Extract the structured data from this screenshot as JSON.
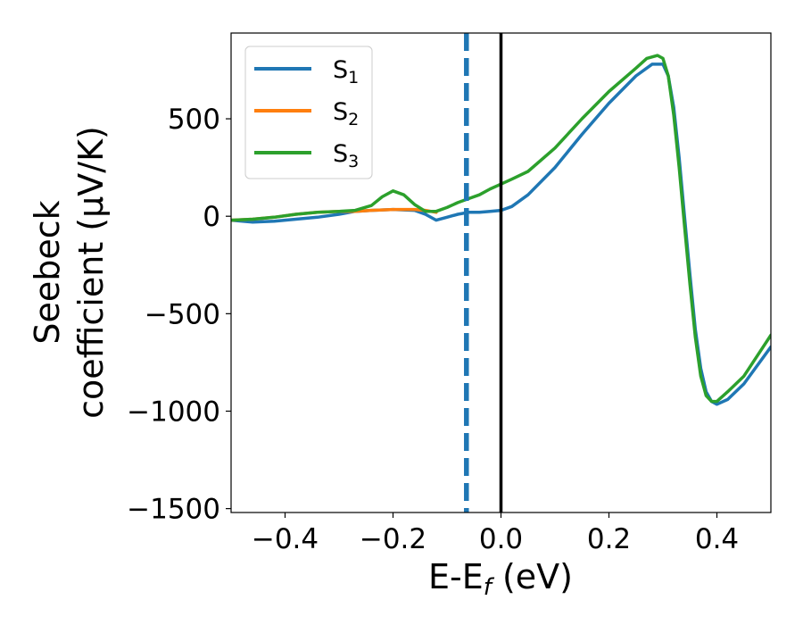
{
  "chart_data": {
    "type": "line",
    "xlabel": "E-E",
    "xlabel_sub": "f",
    "xlabel_unit": " (eV)",
    "ylabel_line1": "Seebeck",
    "ylabel_line2": "coefficient  (μV/K)",
    "xlim": [
      -0.5,
      0.5
    ],
    "ylim": [
      -1520,
      940
    ],
    "xticks": [
      -0.4,
      -0.2,
      0.0,
      0.2,
      0.4
    ],
    "xtick_labels": [
      "−0.4",
      "−0.2",
      "0.0",
      "0.2",
      "0.4"
    ],
    "yticks": [
      -1500,
      -1000,
      -500,
      0,
      500
    ],
    "ytick_labels": [
      "−1500",
      "−1000",
      "−500",
      "0",
      "500"
    ],
    "grid": false,
    "legend_position": "top-left",
    "vlines": [
      {
        "x": -0.064,
        "style": "dashed",
        "color": "#1f77b4"
      },
      {
        "x": 0.0,
        "style": "solid",
        "color": "#000000"
      }
    ],
    "series": [
      {
        "name": "S",
        "sub": "1",
        "color": "#1f77b4",
        "x": [
          -0.5,
          -0.46,
          -0.42,
          -0.38,
          -0.34,
          -0.3,
          -0.27,
          -0.24,
          -0.2,
          -0.16,
          -0.14,
          -0.12,
          -0.1,
          -0.08,
          -0.06,
          -0.04,
          -0.02,
          0.0,
          0.02,
          0.05,
          0.1,
          0.15,
          0.2,
          0.25,
          0.28,
          0.3,
          0.31,
          0.32,
          0.33,
          0.34,
          0.35,
          0.36,
          0.37,
          0.38,
          0.39,
          0.4,
          0.42,
          0.45,
          0.5
        ],
        "y": [
          -20,
          -30,
          -25,
          -15,
          -5,
          10,
          25,
          30,
          35,
          30,
          10,
          -20,
          -5,
          10,
          20,
          20,
          25,
          30,
          50,
          110,
          250,
          420,
          580,
          720,
          780,
          780,
          720,
          560,
          300,
          0,
          -300,
          -580,
          -780,
          -900,
          -950,
          -965,
          -940,
          -860,
          -670
        ]
      },
      {
        "name": "S",
        "sub": "2",
        "color": "#ff7f0e",
        "x": [
          -0.5,
          -0.46,
          -0.42,
          -0.38,
          -0.34,
          -0.3,
          -0.27,
          -0.24,
          -0.2,
          -0.16,
          -0.14,
          -0.12
        ],
        "y": [
          -20,
          -15,
          -5,
          10,
          20,
          25,
          25,
          30,
          35,
          35,
          30,
          20
        ]
      },
      {
        "name": "S",
        "sub": "3",
        "color": "#2ca02c",
        "x": [
          -0.5,
          -0.46,
          -0.42,
          -0.38,
          -0.34,
          -0.3,
          -0.27,
          -0.24,
          -0.22,
          -0.2,
          -0.18,
          -0.16,
          -0.14,
          -0.12,
          -0.1,
          -0.08,
          -0.06,
          -0.04,
          -0.02,
          0.0,
          0.02,
          0.05,
          0.1,
          0.15,
          0.2,
          0.25,
          0.27,
          0.29,
          0.3,
          0.31,
          0.32,
          0.33,
          0.34,
          0.35,
          0.36,
          0.37,
          0.38,
          0.39,
          0.4,
          0.42,
          0.45,
          0.5
        ],
        "y": [
          -20,
          -15,
          -5,
          10,
          20,
          25,
          30,
          55,
          100,
          130,
          110,
          60,
          25,
          25,
          45,
          70,
          90,
          110,
          140,
          165,
          190,
          230,
          350,
          500,
          640,
          760,
          810,
          825,
          810,
          720,
          520,
          250,
          -50,
          -350,
          -620,
          -820,
          -920,
          -950,
          -950,
          -900,
          -820,
          -610
        ]
      }
    ],
    "legend_series_colors": [
      "#1f77b4",
      "#ff7f0e",
      "#2ca02c"
    ]
  }
}
